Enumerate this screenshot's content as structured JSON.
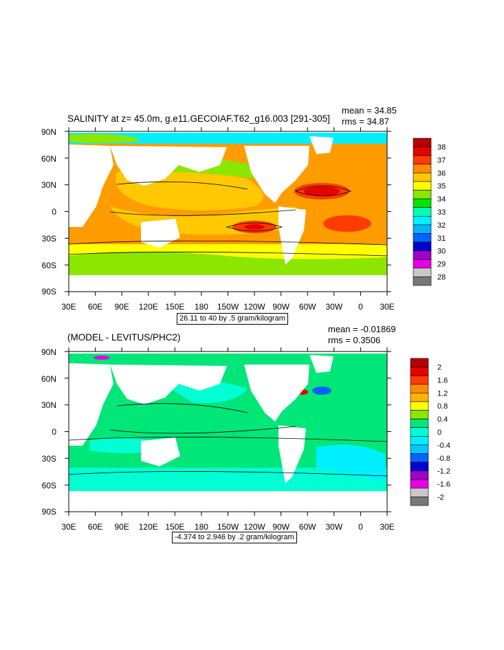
{
  "panels": [
    {
      "title": "SALINITY at z=  45.0m, g.e11.GECOIAF.T62_g16.003 [291-305]",
      "mean": "mean = 34.85",
      "rms": "rms = 34.87",
      "info": "26.11 to 40 by .5 gram/kilogram",
      "lat_labels": [
        "90N",
        "60N",
        "30N",
        "0",
        "30S",
        "60S",
        "90S"
      ],
      "lon_labels": [
        "30E",
        "60E",
        "90E",
        "120E",
        "150E",
        "180",
        "150W",
        "120W",
        "90W",
        "60W",
        "30W",
        "0",
        "30E"
      ],
      "colorbar_labels": [
        "38",
        "37",
        "36",
        "35",
        "34",
        "33",
        "32",
        "31",
        "30",
        "29",
        "28"
      ],
      "colorbar_colors": [
        "#b40000",
        "#e60000",
        "#ff3c00",
        "#ff8c00",
        "#ffc800",
        "#ffff00",
        "#8ce600",
        "#00e600",
        "#00ffb4",
        "#00f0ff",
        "#00b4ff",
        "#0064ff",
        "#0000d2",
        "#a000c8",
        "#e600e6",
        "#c8c8c8",
        "#787878"
      ]
    },
    {
      "title": "(MODEL - LEVITUS/PHC2)",
      "mean": "mean = -0.01869",
      "rms": "rms = 0.3506",
      "info": "-4.374 to 2.946 by .2 gram/kilogram",
      "lat_labels": [
        "90N",
        "60N",
        "30N",
        "0",
        "30S",
        "60S",
        "90S"
      ],
      "lon_labels": [
        "30E",
        "60E",
        "90E",
        "120E",
        "150E",
        "180",
        "150W",
        "120W",
        "90W",
        "60W",
        "30W",
        "0",
        "30E"
      ],
      "colorbar_labels": [
        "2",
        "1.6",
        "1.2",
        "0.8",
        "0.4",
        "0",
        "-0.4",
        "-0.8",
        "-1.2",
        "-1.6",
        "-2"
      ],
      "colorbar_colors": [
        "#b40000",
        "#e60000",
        "#ff3c00",
        "#ff8c00",
        "#ffb400",
        "#ffff00",
        "#8ce600",
        "#00e678",
        "#00ffd2",
        "#00f0ff",
        "#00c8ff",
        "#0064ff",
        "#0000d2",
        "#a000c8",
        "#e600e6",
        "#c8c8c8",
        "#787878"
      ]
    }
  ]
}
